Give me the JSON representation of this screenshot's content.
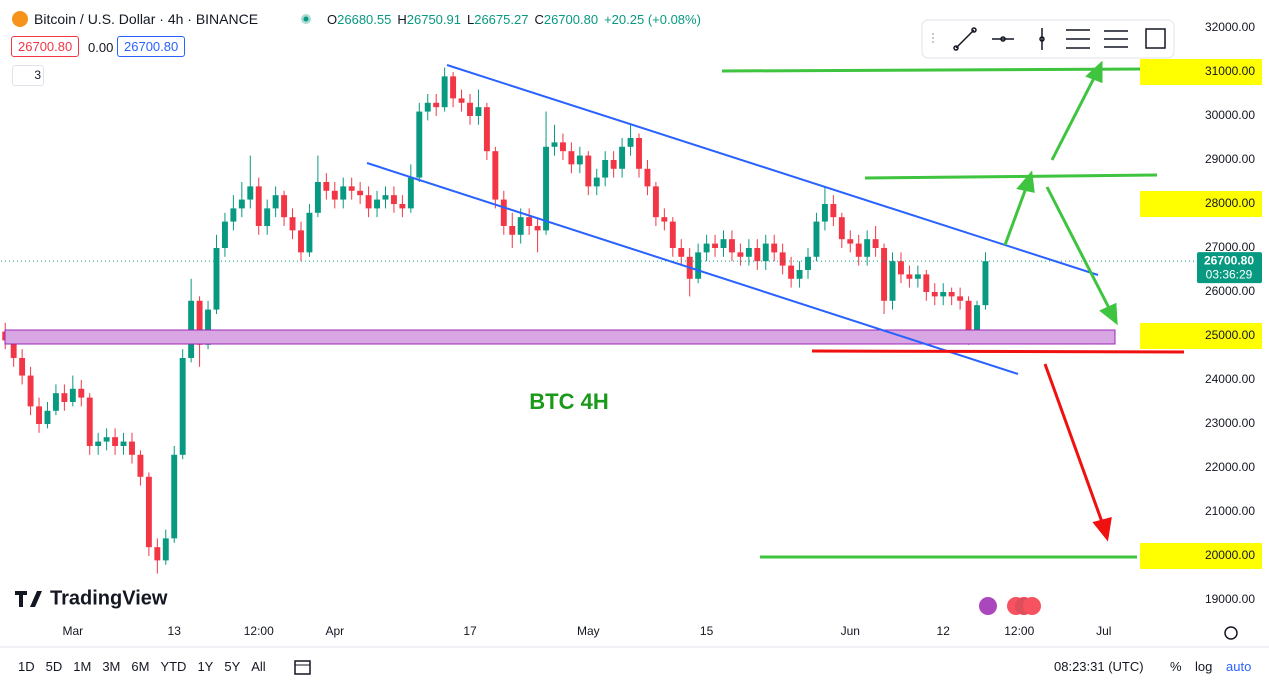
{
  "header": {
    "symbol": "Bitcoin / U.S. Dollar · 4h · BINANCE",
    "ohlc": [
      {
        "key": "O",
        "value": "26680.55"
      },
      {
        "key": "H",
        "value": "26750.91"
      },
      {
        "key": "L",
        "value": "26675.27"
      },
      {
        "key": "C",
        "value": "26700.80"
      }
    ],
    "change": "+20.25 (+0.08%)",
    "bid": "26700.80",
    "spread": "0.00",
    "ask": "26700.80",
    "indicators": "3"
  },
  "logo": "TradingView",
  "footer": {
    "ranges": [
      "1D",
      "5D",
      "1M",
      "3M",
      "6M",
      "YTD",
      "1Y",
      "5Y",
      "All"
    ],
    "clock": "08:23:31 (UTC)",
    "percent": "%",
    "log": "log",
    "auto": "auto"
  },
  "chart_data": {
    "type": "candlestick",
    "annotation": "BTC 4H",
    "up_color": "#089981",
    "down_color": "#f23645",
    "grid": false,
    "categories": [
      null,
      null,
      null,
      null,
      null,
      null,
      null,
      null,
      "Mar",
      null,
      null,
      null,
      null,
      null,
      null,
      null,
      null,
      null,
      null,
      null,
      "13",
      null,
      null,
      null,
      null,
      null,
      null,
      null,
      null,
      null,
      "12:00",
      null,
      null,
      null,
      null,
      null,
      null,
      null,
      null,
      "Apr",
      null,
      null,
      null,
      null,
      null,
      null,
      null,
      null,
      null,
      null,
      null,
      null,
      null,
      null,
      null,
      "17",
      null,
      null,
      null,
      null,
      null,
      null,
      null,
      null,
      null,
      null,
      null,
      null,
      null,
      "May",
      null,
      null,
      null,
      null,
      null,
      null,
      null,
      null,
      null,
      null,
      null,
      null,
      null,
      "15",
      null,
      null,
      null,
      null,
      null,
      null,
      null,
      null,
      null,
      null,
      null,
      null,
      null,
      null,
      null,
      null,
      "Jun",
      null,
      null,
      null,
      null,
      null,
      null,
      null,
      null,
      null,
      null,
      "12",
      null,
      null,
      null,
      null,
      null,
      null,
      null,
      null,
      "12:00",
      null,
      null,
      null,
      null,
      null,
      null,
      null,
      null,
      null,
      "Jul",
      null,
      null,
      null,
      null,
      null,
      null,
      null,
      null,
      null,
      null
    ],
    "open": [
      25100,
      24900,
      24500,
      24100,
      23400,
      23000,
      23300,
      23700,
      23500,
      23800,
      23600,
      22500,
      22600,
      22700,
      22500,
      22600,
      22300,
      21800,
      20200,
      19900,
      20400,
      22300,
      24500,
      25800,
      24800,
      25600,
      27000,
      27600,
      27900,
      28100,
      28400,
      27500,
      27900,
      28200,
      27700,
      27400,
      26900,
      27800,
      28500,
      28300,
      28100,
      28400,
      28300,
      28200,
      27900,
      28100,
      28200,
      28000,
      27900,
      28600,
      30100,
      30300,
      30200,
      30900,
      30400,
      30300,
      30000,
      30200,
      29200,
      28100,
      27500,
      27300,
      27700,
      27500,
      27400,
      29300,
      29400,
      29200,
      28900,
      29100,
      28400,
      28600,
      29000,
      28800,
      29300,
      29500,
      28800,
      28400,
      27700,
      27600,
      27000,
      26800,
      26300,
      26900,
      27100,
      27000,
      27200,
      26900,
      26800,
      27000,
      26700,
      27100,
      26900,
      26600,
      26300,
      26500,
      26800,
      27600,
      28000,
      27700,
      27200,
      27100,
      26800,
      27200,
      27000,
      25800,
      26700,
      26400,
      26300,
      26400,
      26000,
      25900,
      26000,
      25900,
      25800,
      25100,
      25700,
      null,
      null,
      null,
      null,
      null,
      null,
      null,
      null,
      null,
      null,
      null,
      null,
      null,
      null,
      null,
      null,
      null,
      null,
      null,
      null,
      null,
      null,
      null,
      null
    ],
    "high": [
      25300,
      25100,
      24700,
      24300,
      23600,
      23500,
      23900,
      23900,
      24100,
      24000,
      23700,
      22800,
      22900,
      22900,
      22800,
      22800,
      22400,
      21900,
      20400,
      20600,
      22500,
      24700,
      26300,
      25900,
      25800,
      27300,
      27800,
      28200,
      28500,
      29100,
      28600,
      28100,
      28400,
      28300,
      27900,
      27600,
      28000,
      29100,
      28700,
      28500,
      28600,
      28600,
      28500,
      28400,
      28300,
      28400,
      28400,
      28200,
      28900,
      30300,
      30500,
      30500,
      31100,
      31000,
      30600,
      30500,
      30600,
      30300,
      29300,
      28300,
      27800,
      27900,
      27900,
      27700,
      30100,
      29800,
      29600,
      29400,
      29300,
      29200,
      28800,
      29200,
      29200,
      29500,
      29800,
      29600,
      29000,
      28500,
      27900,
      27700,
      27200,
      27000,
      27100,
      27300,
      27300,
      27400,
      27400,
      27100,
      27200,
      27200,
      27300,
      27300,
      27100,
      26800,
      26700,
      27000,
      27800,
      28400,
      28200,
      27800,
      27400,
      27300,
      27400,
      27500,
      27100,
      26900,
      26900,
      26600,
      26600,
      26500,
      26200,
      26200,
      26100,
      26100,
      25900,
      25800,
      26900,
      null,
      null,
      null,
      null,
      null,
      null,
      null,
      null,
      null,
      null,
      null,
      null,
      null,
      null,
      null,
      null,
      null,
      null,
      null,
      null,
      null,
      null,
      null,
      null
    ],
    "low": [
      24700,
      24300,
      23900,
      23200,
      22800,
      22900,
      23200,
      23300,
      23400,
      23400,
      22300,
      22300,
      22400,
      22300,
      22300,
      22100,
      21600,
      20000,
      19600,
      19800,
      20300,
      22200,
      24400,
      24300,
      24700,
      25500,
      26800,
      27400,
      27700,
      27900,
      27300,
      27300,
      27700,
      27500,
      27200,
      26700,
      26800,
      27700,
      28100,
      27900,
      27900,
      28100,
      28000,
      27700,
      27700,
      27900,
      27800,
      27700,
      27800,
      28500,
      29900,
      30000,
      30100,
      30200,
      30100,
      29800,
      29800,
      29000,
      27900,
      27300,
      27000,
      27100,
      27300,
      26900,
      27300,
      29100,
      29000,
      28700,
      28700,
      28200,
      28200,
      28400,
      28600,
      28600,
      29100,
      28600,
      28200,
      27500,
      27400,
      26800,
      26600,
      25900,
      26200,
      26700,
      26800,
      26800,
      26700,
      26600,
      26600,
      26500,
      26500,
      26700,
      26400,
      26100,
      26100,
      26300,
      26700,
      27400,
      27500,
      27000,
      26900,
      26600,
      26600,
      26800,
      25500,
      25600,
      26200,
      26100,
      26100,
      25800,
      25700,
      25700,
      25700,
      25600,
      24800,
      25000,
      25600,
      null,
      null,
      null,
      null,
      null,
      null,
      null,
      null,
      null,
      null,
      null,
      null,
      null,
      null,
      null,
      null,
      null,
      null,
      null,
      null,
      null,
      null,
      null,
      null
    ],
    "close": [
      24900,
      24500,
      24100,
      23400,
      23000,
      23300,
      23700,
      23500,
      23800,
      23600,
      22500,
      22600,
      22700,
      22500,
      22600,
      22300,
      21800,
      20200,
      19900,
      20400,
      22300,
      24500,
      25800,
      24800,
      25600,
      27000,
      27600,
      27900,
      28100,
      28400,
      27500,
      27900,
      28200,
      27700,
      27400,
      26900,
      27800,
      28500,
      28300,
      28100,
      28400,
      28300,
      28200,
      27900,
      28100,
      28200,
      28000,
      27900,
      28600,
      30100,
      30300,
      30200,
      30900,
      30400,
      30300,
      30000,
      30200,
      29200,
      28100,
      27500,
      27300,
      27700,
      27500,
      27400,
      29300,
      29400,
      29200,
      28900,
      29100,
      28400,
      28600,
      29000,
      28800,
      29300,
      29500,
      28800,
      28400,
      27700,
      27600,
      27000,
      26800,
      26300,
      26900,
      27100,
      27000,
      27200,
      26900,
      26800,
      27000,
      26700,
      27100,
      26900,
      26600,
      26300,
      26500,
      26800,
      27600,
      28000,
      27700,
      27200,
      27100,
      26800,
      27200,
      27000,
      25800,
      26700,
      26400,
      26300,
      26400,
      26000,
      25900,
      26000,
      25900,
      25800,
      25100,
      25700,
      26700,
      null,
      null,
      null,
      null,
      null,
      null,
      null,
      null,
      null,
      null,
      null,
      null,
      null,
      null,
      null,
      null,
      null,
      null,
      null,
      null,
      null,
      null,
      null,
      null
    ],
    "last_price": {
      "value": 26700.8,
      "label": "26700.80"
    },
    "countdown": "03:36:29",
    "ylim": [
      18545,
      32636
    ],
    "yticks": [
      {
        "value": 19000,
        "label": "19000.00"
      },
      {
        "value": 20000,
        "label": "20000.00",
        "highlight": true
      },
      {
        "value": 21000,
        "label": "21000.00"
      },
      {
        "value": 22000,
        "label": "22000.00"
      },
      {
        "value": 23000,
        "label": "23000.00"
      },
      {
        "value": 24000,
        "label": "24000.00"
      },
      {
        "value": 25000,
        "label": "25000.00",
        "highlight": true
      },
      {
        "value": 26000,
        "label": "26000.00"
      },
      {
        "value": 27000,
        "label": "27000.00"
      },
      {
        "value": 28000,
        "label": "28000.00",
        "highlight": true
      },
      {
        "value": 29000,
        "label": "29000.00"
      },
      {
        "value": 30000,
        "label": "30000.00"
      },
      {
        "value": 31000,
        "label": "31000.00",
        "highlight": true
      },
      {
        "value": 32000,
        "label": "32000.00"
      }
    ]
  }
}
